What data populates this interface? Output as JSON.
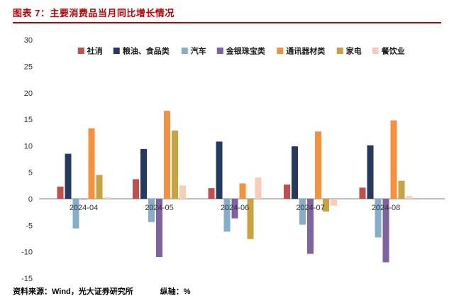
{
  "header": {
    "title": "图表 7：主要消费品当月同比增长情况"
  },
  "footer": {
    "source": "资料来源：Wind，光大证券研究所",
    "axis_note": "纵轴：%"
  },
  "colors": {
    "title": "#C00000",
    "rule": "#C00000",
    "axis_line": "#7f7f7f"
  },
  "chart_data": {
    "type": "bar",
    "title": "主要消费品当月同比增长情况",
    "unit": "%",
    "grid": false,
    "legend_position": "top",
    "ylim": [
      -15,
      30
    ],
    "ytick_step": 5,
    "categories": [
      "2024-04",
      "2024-05",
      "2024-06",
      "2024-07",
      "2024-08"
    ],
    "series": [
      {
        "name": "社消",
        "color": "#C0504D",
        "values": [
          2.3,
          3.7,
          2.0,
          2.7,
          2.1
        ]
      },
      {
        "name": "粮油、食品类",
        "color": "#243B5F",
        "values": [
          8.5,
          9.4,
          10.8,
          9.9,
          10.1
        ]
      },
      {
        "name": "汽车",
        "color": "#86AEC9",
        "values": [
          -5.6,
          -4.4,
          -6.2,
          -4.9,
          -7.3
        ]
      },
      {
        "name": "金银珠宝类",
        "color": "#7F63A1",
        "values": [
          -0.1,
          -11.0,
          -3.7,
          -10.4,
          -12.0
        ]
      },
      {
        "name": "通讯器材类",
        "color": "#F5913C",
        "values": [
          13.3,
          16.6,
          2.9,
          12.7,
          14.8
        ]
      },
      {
        "name": "家电",
        "color": "#C9A342",
        "values": [
          4.5,
          12.9,
          -7.6,
          -2.4,
          3.4
        ]
      },
      {
        "name": "餐饮业",
        "color": "#F9CDB5",
        "values": [
          0.3,
          2.5,
          4.0,
          -1.3,
          0.5
        ]
      }
    ]
  }
}
